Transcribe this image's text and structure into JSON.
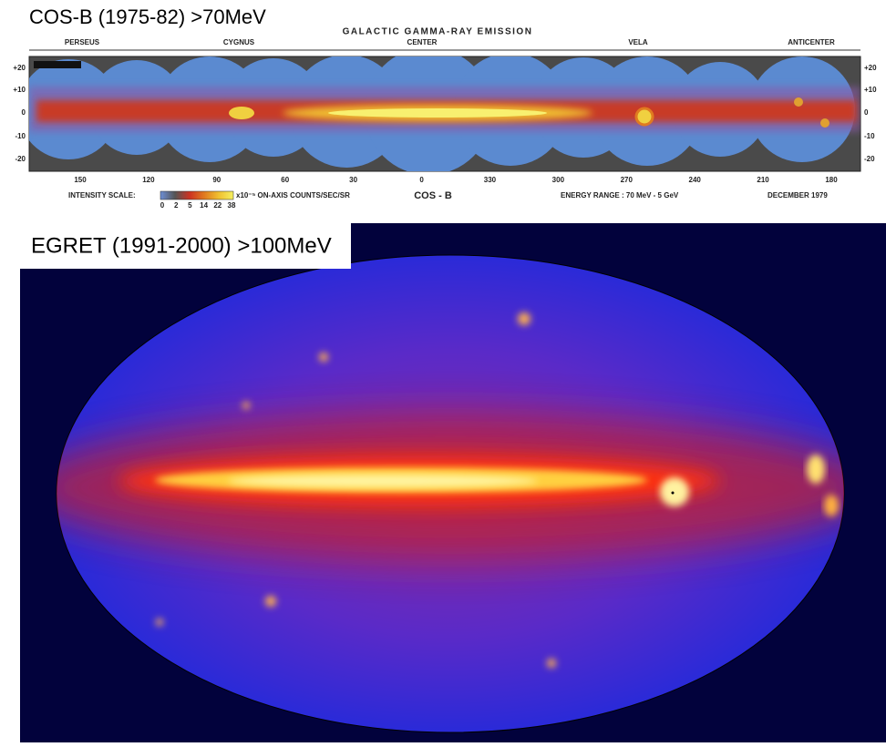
{
  "cosb": {
    "heading": "COS-B (1975-82) >70MeV",
    "title": "GALACTIC GAMMA-RAY EMISSION",
    "regions": [
      "PERSEUS",
      "CYGNUS",
      "CENTER",
      "VELA",
      "ANTICENTER"
    ],
    "lat_ticks": [
      "+20",
      "+10",
      "0",
      "-10",
      "-20"
    ],
    "lon_ticks": [
      "150",
      "120",
      "90",
      "60",
      "30",
      "0",
      "330",
      "300",
      "270",
      "240",
      "210",
      "180"
    ],
    "scale_label": "INTENSITY SCALE:",
    "scale_values": [
      "0",
      "2",
      "5",
      "14",
      "22",
      "38"
    ],
    "scale_unit": "x10⁻⁵ ON-AXIS COUNTS/SEC/SR",
    "instrument": "COS - B",
    "energy": "ENERGY RANGE : 70 MeV - 5 GeV",
    "date": "DECEMBER 1979"
  },
  "egret": {
    "heading": "EGRET (1991-2000) >100MeV"
  }
}
